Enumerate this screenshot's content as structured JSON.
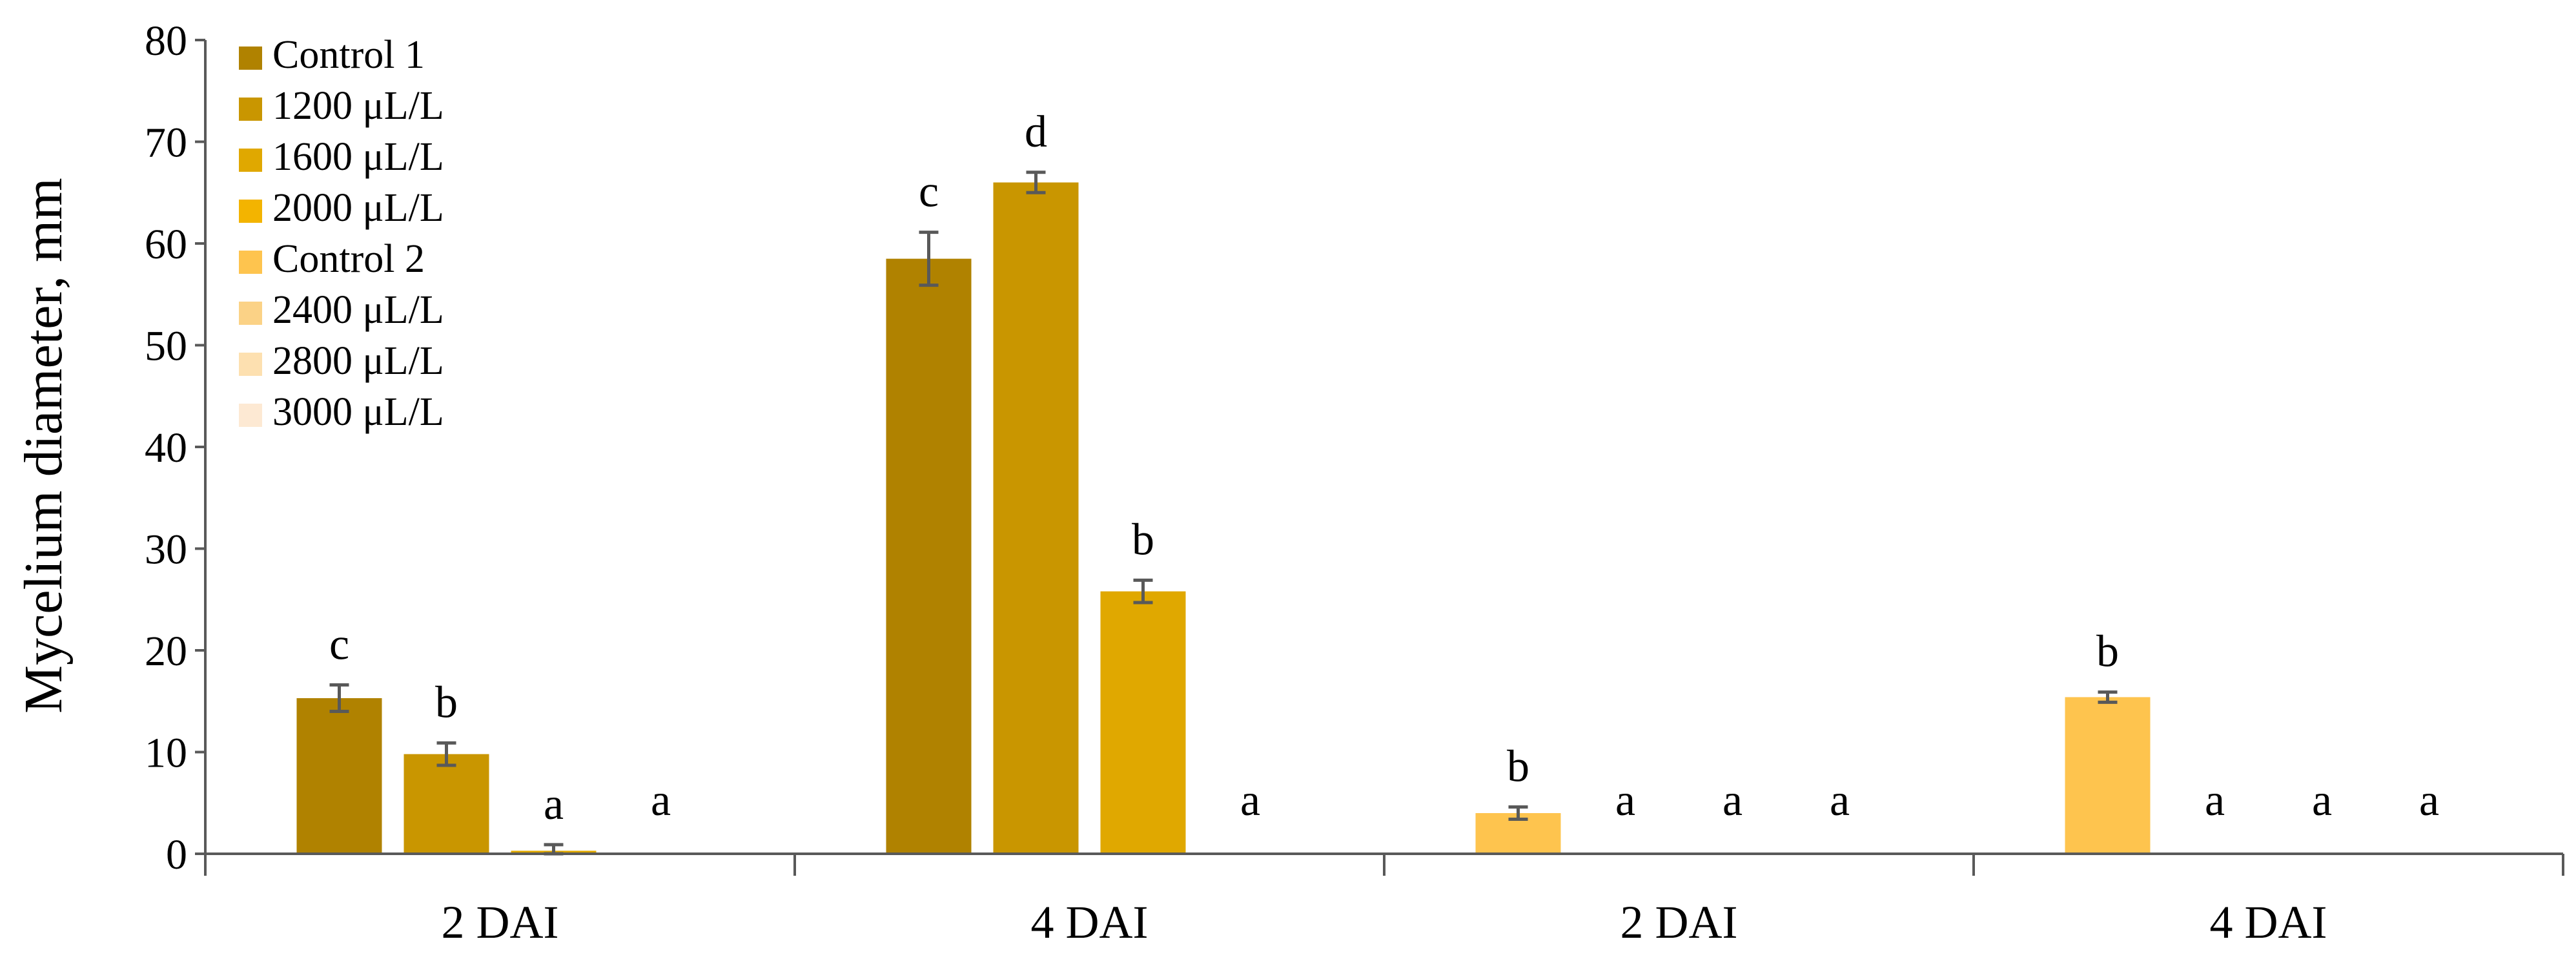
{
  "chart_data": {
    "type": "bar",
    "ylabel": "Mycelium diameter, mm",
    "ylim": [
      0,
      80
    ],
    "yticks": [
      0,
      10,
      20,
      30,
      40,
      50,
      60,
      70,
      80
    ],
    "grid": false,
    "legend_position": "top-left",
    "groups": [
      {
        "label": "2 DAI",
        "series": [
          "Control 1",
          "1200 μL/L",
          "1600 μL/L",
          "2000 μL/L"
        ],
        "values": [
          15.3,
          9.8,
          0.3,
          0
        ],
        "errors": [
          1.3,
          1.1,
          0.6,
          0
        ],
        "letters": [
          "c",
          "b",
          "a",
          "a"
        ]
      },
      {
        "label": "4 DAI",
        "series": [
          "Control 1",
          "1200 μL/L",
          "1600 μL/L",
          "2000 μL/L"
        ],
        "values": [
          58.5,
          66.0,
          25.8,
          0
        ],
        "errors": [
          2.6,
          1.0,
          1.1,
          0
        ],
        "letters": [
          "c",
          "d",
          "b",
          "a"
        ]
      },
      {
        "label": "2 DAI",
        "series": [
          "Control 2",
          "2400 μL/L",
          "2800 μL/L",
          "3000 μL/L"
        ],
        "values": [
          4.0,
          0,
          0,
          0
        ],
        "errors": [
          0.6,
          0,
          0,
          0
        ],
        "letters": [
          "b",
          "a",
          "a",
          "a"
        ]
      },
      {
        "label": "4 DAI",
        "series": [
          "Control 2",
          "2400 μL/L",
          "2800 μL/L",
          "3000 μL/L"
        ],
        "values": [
          15.4,
          0,
          0,
          0
        ],
        "errors": [
          0.5,
          0,
          0,
          0
        ],
        "letters": [
          "b",
          "a",
          "a",
          "a"
        ]
      }
    ],
    "legend": [
      {
        "name": "Control 1",
        "color": "#b08200"
      },
      {
        "name": "1200 μL/L",
        "color": "#c99600"
      },
      {
        "name": "1600 μL/L",
        "color": "#e0a800"
      },
      {
        "name": "2000 μL/L",
        "color": "#f3b400"
      },
      {
        "name": "Control 2",
        "color": "#fec44e"
      },
      {
        "name": "2400 μL/L",
        "color": "#fbd286"
      },
      {
        "name": "2800 μL/L",
        "color": "#fde0b0"
      },
      {
        "name": "3000 μL/L",
        "color": "#fde9d3"
      }
    ]
  }
}
